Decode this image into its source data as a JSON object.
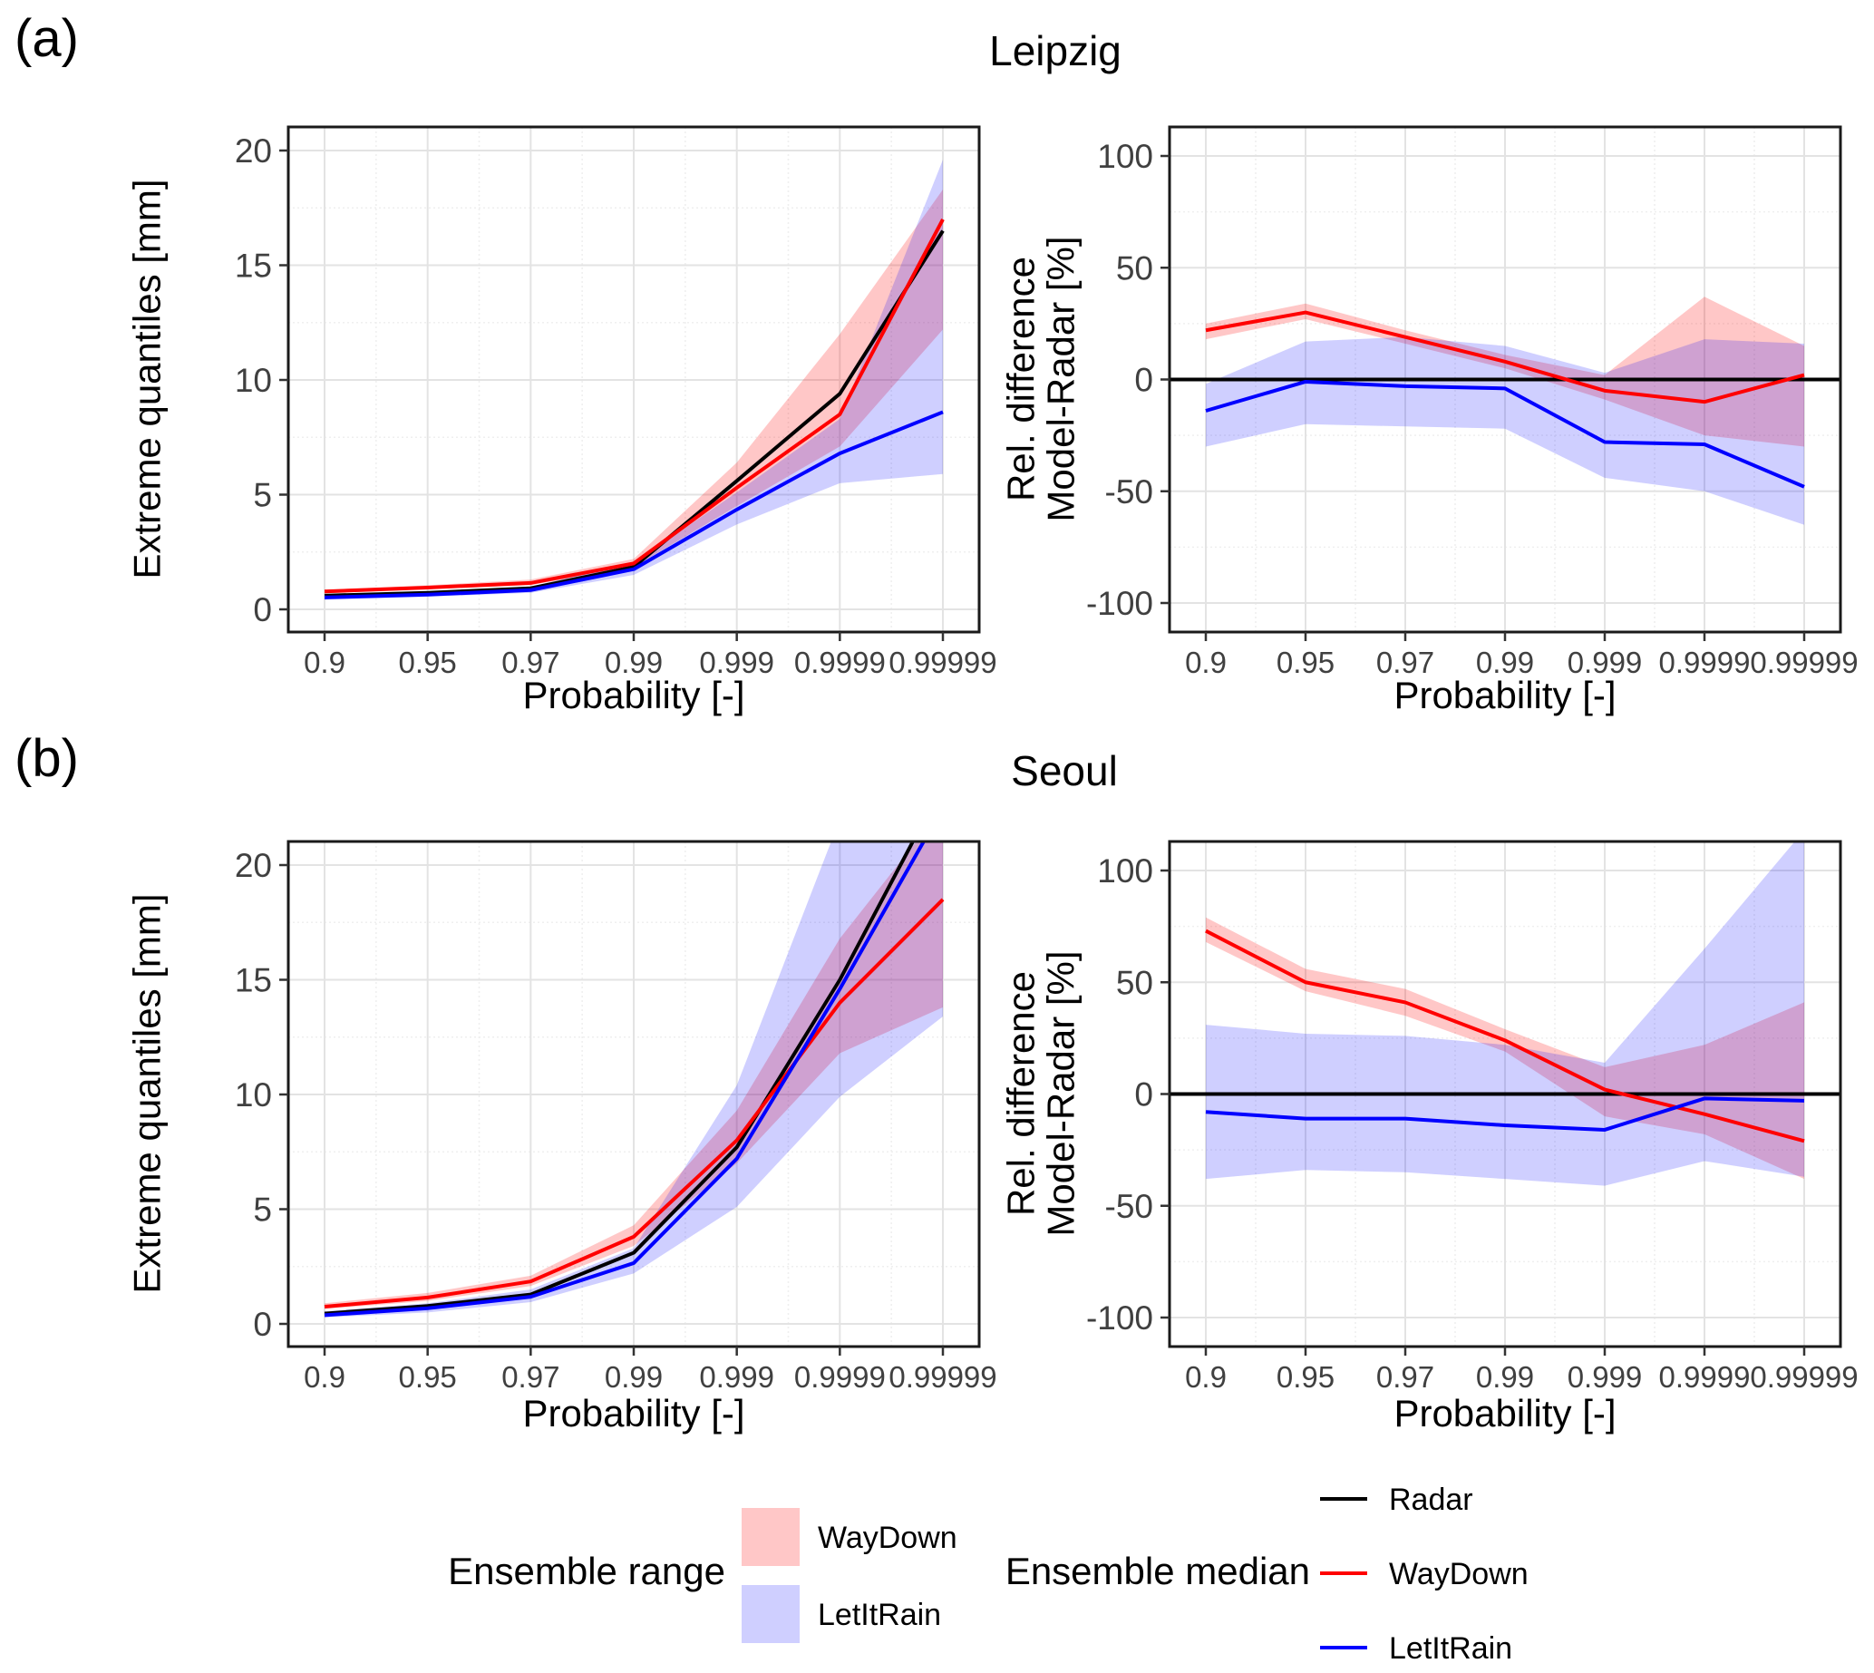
{
  "figure": {
    "label_a": "(a)",
    "label_b": "(b)",
    "title_top": "Leipzig",
    "title_bottom": "Seoul"
  },
  "axes": {
    "xlabel": "Probability [-]",
    "quantiles_ylabel": "Extreme quantiles [mm]",
    "reldiff_ylabel_line1": "Rel. difference",
    "reldiff_ylabel_line2": "Model-Radar [%]"
  },
  "colors": {
    "radar_line": "#000000",
    "waydown_line": "#FF0000",
    "letitrain_line": "#0000FF",
    "waydown_band": "rgba(255,0,0,0.22)",
    "letitrain_band": "rgba(0,0,255,0.19)",
    "grid_major": "#E3E3E3",
    "grid_minor": "#EFEFEF",
    "panel_border": "#1A1A1A",
    "tick_text": "#404040"
  },
  "legend": {
    "range_group": {
      "title": "Ensemble range",
      "items": [
        {
          "label": "WayDown",
          "color": "rgba(255,0,0,0.22)"
        },
        {
          "label": "LetItRain",
          "color": "rgba(0,0,255,0.19)"
        }
      ]
    },
    "median_group": {
      "title": "Ensemble median",
      "items": [
        {
          "label": "Radar",
          "color": "#000000"
        },
        {
          "label": "WayDown",
          "color": "#FF0000"
        },
        {
          "label": "LetItRain",
          "color": "#0000FF"
        }
      ]
    }
  },
  "chart_data": [
    {
      "id": "leipzig-quantiles",
      "type": "line",
      "city": "Leipzig",
      "panel": "quantiles",
      "x_categories": [
        "0.9",
        "0.95",
        "0.97",
        "0.99",
        "0.999",
        "0.9999",
        "0.99999"
      ],
      "xlabel": "Probability [-]",
      "ylabel": "Extreme quantiles [mm]",
      "ylim": [
        -1,
        21.2
      ],
      "yticks": [
        0,
        5,
        10,
        15,
        20
      ],
      "yticks_minor": [
        2.5,
        7.5,
        12.5,
        17.5
      ],
      "zero_line": false,
      "grid": true,
      "legend_position": "bottom",
      "series": [
        {
          "name": "Radar",
          "color": "#000000",
          "values": [
            0.6,
            0.72,
            0.92,
            1.85,
            5.6,
            9.4,
            16.5
          ]
        },
        {
          "name": "WayDown",
          "color": "#FF0000",
          "band_color": "rgba(255,0,0,0.22)",
          "values": [
            0.78,
            0.95,
            1.15,
            2.0,
            5.3,
            8.5,
            17.0
          ],
          "band_lo": [
            0.7,
            0.88,
            1.05,
            1.85,
            4.5,
            7.1,
            12.2
          ],
          "band_hi": [
            0.85,
            1.05,
            1.3,
            2.2,
            6.4,
            12.0,
            18.3
          ]
        },
        {
          "name": "LetItRain",
          "color": "#0000FF",
          "band_color": "rgba(0,0,255,0.19)",
          "values": [
            0.52,
            0.64,
            0.84,
            1.75,
            4.35,
            6.8,
            8.6
          ],
          "band_lo": [
            0.42,
            0.55,
            0.72,
            1.5,
            3.7,
            5.5,
            5.9
          ],
          "band_hi": [
            0.62,
            0.78,
            1.0,
            2.0,
            5.1,
            8.3,
            19.6
          ]
        }
      ]
    },
    {
      "id": "leipzig-reldiff",
      "type": "line",
      "city": "Leipzig",
      "panel": "reldiff",
      "x_categories": [
        "0.9",
        "0.95",
        "0.97",
        "0.99",
        "0.999",
        "0.9999",
        "0.99999"
      ],
      "xlabel": "Probability [-]",
      "ylabel": "Rel. difference Model-Radar [%]",
      "ylim": [
        -113,
        113
      ],
      "yticks": [
        -100,
        -50,
        0,
        50,
        100
      ],
      "yticks_minor": [
        -75,
        -25,
        25,
        75
      ],
      "zero_line": true,
      "grid": true,
      "legend_position": "bottom",
      "series": [
        {
          "name": "WayDown",
          "color": "#FF0000",
          "band_color": "rgba(255,0,0,0.22)",
          "values": [
            22,
            30,
            19,
            8,
            -5,
            -10,
            2
          ],
          "band_lo": [
            18,
            27,
            16,
            5,
            -9,
            -25,
            -30
          ],
          "band_hi": [
            25,
            34,
            22,
            11,
            2,
            37,
            15
          ]
        },
        {
          "name": "LetItRain",
          "color": "#0000FF",
          "band_color": "rgba(0,0,255,0.19)",
          "values": [
            -14,
            -1,
            -3,
            -4,
            -28,
            -29,
            -48
          ],
          "band_lo": [
            -30,
            -20,
            -21,
            -22,
            -44,
            -50,
            -65
          ],
          "band_hi": [
            -2,
            17,
            19,
            15,
            3,
            18,
            16
          ]
        }
      ]
    },
    {
      "id": "seoul-quantiles",
      "type": "line",
      "city": "Seoul",
      "panel": "quantiles",
      "x_categories": [
        "0.9",
        "0.95",
        "0.97",
        "0.99",
        "0.999",
        "0.9999",
        "0.99999"
      ],
      "xlabel": "Probability [-]",
      "ylabel": "Extreme quantiles [mm]",
      "ylim": [
        -1,
        21.2
      ],
      "yticks": [
        0,
        5,
        10,
        15,
        20
      ],
      "yticks_minor": [
        2.5,
        7.5,
        12.5,
        17.5
      ],
      "zero_line": false,
      "grid": true,
      "legend_position": "bottom",
      "series": [
        {
          "name": "Radar",
          "color": "#000000",
          "values": [
            0.45,
            0.78,
            1.28,
            3.1,
            7.7,
            15.0,
            23.5
          ]
        },
        {
          "name": "WayDown",
          "color": "#FF0000",
          "band_color": "rgba(255,0,0,0.22)",
          "values": [
            0.75,
            1.15,
            1.85,
            3.8,
            8.0,
            14.0,
            18.5
          ],
          "band_lo": [
            0.65,
            1.0,
            1.65,
            3.4,
            7.0,
            11.8,
            13.8
          ],
          "band_hi": [
            0.9,
            1.35,
            2.1,
            4.3,
            9.3,
            16.8,
            22.5
          ]
        },
        {
          "name": "LetItRain",
          "color": "#0000FF",
          "band_color": "rgba(0,0,255,0.19)",
          "values": [
            0.38,
            0.68,
            1.18,
            2.65,
            7.2,
            14.6,
            22.5
          ],
          "band_lo": [
            0.28,
            0.5,
            0.95,
            2.2,
            5.1,
            9.9,
            13.4
          ],
          "band_hi": [
            0.55,
            0.9,
            1.5,
            3.3,
            10.4,
            22.0,
            26.0
          ]
        }
      ]
    },
    {
      "id": "seoul-reldiff",
      "type": "line",
      "city": "Seoul",
      "panel": "reldiff",
      "x_categories": [
        "0.9",
        "0.95",
        "0.97",
        "0.99",
        "0.999",
        "0.9999",
        "0.99999"
      ],
      "xlabel": "Probability [-]",
      "ylabel": "Rel. difference Model-Radar [%]",
      "ylim": [
        -113,
        113
      ],
      "yticks": [
        -100,
        -50,
        0,
        50,
        100
      ],
      "yticks_minor": [
        -75,
        -25,
        25,
        75
      ],
      "zero_line": true,
      "grid": true,
      "legend_position": "bottom",
      "series": [
        {
          "name": "WayDown",
          "color": "#FF0000",
          "band_color": "rgba(255,0,0,0.22)",
          "values": [
            73,
            50,
            41,
            24,
            2,
            -9,
            -21
          ],
          "band_lo": [
            68,
            46,
            35,
            19,
            -10,
            -18,
            -38
          ],
          "band_hi": [
            79,
            56,
            47,
            29,
            12,
            22,
            41
          ]
        },
        {
          "name": "LetItRain",
          "color": "#0000FF",
          "band_color": "rgba(0,0,255,0.19)",
          "values": [
            -8,
            -11,
            -11,
            -14,
            -16,
            -2,
            -3
          ],
          "band_lo": [
            -38,
            -34,
            -35,
            -38,
            -41,
            -30,
            -37
          ],
          "band_hi": [
            31,
            27,
            26,
            22,
            14,
            65,
            118
          ]
        }
      ]
    }
  ]
}
